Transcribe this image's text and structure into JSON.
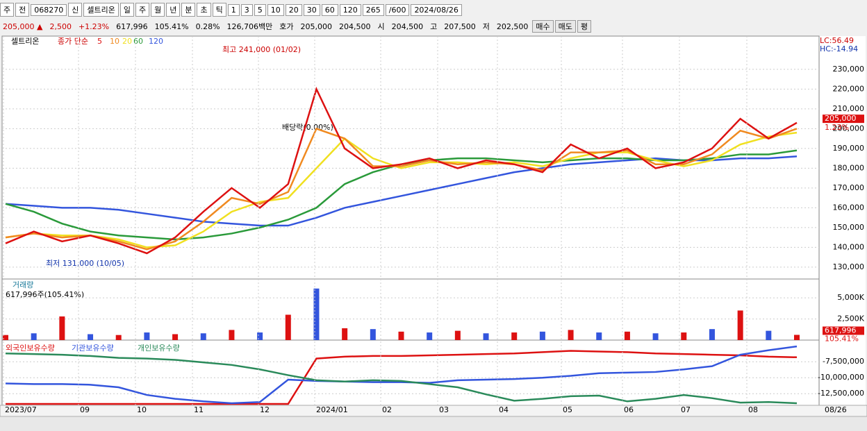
{
  "toolbar": {
    "items": [
      "주",
      "전",
      "068270",
      "신",
      "셀트리온",
      "일",
      "주",
      "월",
      "년",
      "분",
      "초",
      "틱",
      "1",
      "3",
      "5",
      "10",
      "20",
      "30",
      "60",
      "120"
    ],
    "count": "265",
    "max": "/600",
    "date": "2024/08/26"
  },
  "info_bar": {
    "items": [
      "205,000 ▲",
      "2,500",
      "+1.23%",
      "617,996",
      "105.41%",
      "0.28%",
      "126,706백만",
      "호가",
      "205,000",
      "204,500",
      "시",
      "204,500",
      "고",
      "207,500",
      "저",
      "202,500"
    ],
    "buttons": [
      "매수",
      "매도",
      "평"
    ]
  },
  "stock_name": "셀트리온",
  "legend_prefix": "종가 단순",
  "annotations": {
    "high": "최고 241,000 (01/02)",
    "low": "최저 131,000 (10/05)",
    "dividend": "배당락(0.00%)",
    "lc": "LC:56.49",
    "hc": "HC:-14.94"
  },
  "x_axis": {
    "labels": [
      "2023/07",
      "09",
      "10",
      "11",
      "12",
      "2024/01",
      "02",
      "03",
      "04",
      "05",
      "06",
      "07",
      "08"
    ],
    "end_label": "08/26"
  },
  "chart_data": [
    {
      "type": "line",
      "ylim": [
        124000,
        246800
      ],
      "yticks": [
        {
          "value": 130000,
          "label": "130,000"
        },
        {
          "value": 140000,
          "label": "140,000"
        },
        {
          "value": 150000,
          "label": "150,000"
        },
        {
          "value": 160000,
          "label": "160,000"
        },
        {
          "value": 170000,
          "label": "170,000"
        },
        {
          "value": 180000,
          "label": "180,000"
        },
        {
          "value": 190000,
          "label": "190,000"
        },
        {
          "value": 200000,
          "label": "200,000"
        },
        {
          "value": 210000,
          "label": "210,000"
        },
        {
          "value": 220000,
          "label": "220,000"
        },
        {
          "value": 230000,
          "label": "230,000"
        }
      ],
      "last_price": {
        "value": 205000,
        "label": "205,000"
      },
      "last_change": "1.23%",
      "series": [
        {
          "name": "120",
          "color": "#3355dd",
          "values": [
            162000,
            161000,
            160000,
            160000,
            159000,
            157000,
            155000,
            153000,
            152000,
            151000,
            151000,
            155000,
            160000,
            163000,
            166000,
            169000,
            172000,
            175000,
            178000,
            180000,
            182000,
            183000,
            184000,
            185000,
            184000,
            184000,
            185000,
            185000,
            186000
          ]
        },
        {
          "name": "60",
          "color": "#2a9a3a",
          "values": [
            162000,
            158000,
            152000,
            148000,
            146000,
            145000,
            144000,
            145000,
            147000,
            150000,
            154000,
            160000,
            172000,
            178000,
            182000,
            184000,
            185000,
            185000,
            184000,
            183000,
            184000,
            185000,
            185000,
            184000,
            184000,
            185000,
            187000,
            187000,
            189000
          ]
        },
        {
          "name": "20",
          "color": "#f0e020",
          "values": [
            145000,
            147000,
            146000,
            146000,
            144000,
            140000,
            141000,
            148000,
            158000,
            163000,
            165000,
            180000,
            195000,
            185000,
            180000,
            183000,
            183000,
            182000,
            183000,
            181000,
            185000,
            188000,
            188000,
            184000,
            181000,
            184000,
            192000,
            196000,
            198000
          ]
        },
        {
          "name": "10",
          "color": "#f08a20",
          "values": [
            145000,
            147000,
            145000,
            146000,
            143000,
            139000,
            143000,
            153000,
            165000,
            162000,
            168000,
            200000,
            195000,
            181000,
            181000,
            184000,
            182000,
            183000,
            182000,
            179000,
            188000,
            188000,
            189000,
            182000,
            182000,
            187000,
            199000,
            195000,
            200000
          ]
        },
        {
          "name": "5",
          "color": "#dd1111",
          "values": [
            142000,
            148000,
            143000,
            146000,
            142000,
            137000,
            145000,
            158000,
            170000,
            160000,
            172000,
            220000,
            190000,
            180000,
            182000,
            185000,
            180000,
            184000,
            182000,
            178000,
            192000,
            185000,
            190000,
            180000,
            183000,
            190000,
            205000,
            195000,
            203000
          ]
        }
      ]
    },
    {
      "type": "bar",
      "title": "거래량",
      "subtitle": "617,996주(105.41%)",
      "ylim": [
        0,
        6900000
      ],
      "yticks": [
        {
          "value": 2500000,
          "label": "2,500K"
        },
        {
          "value": 5000000,
          "label": "5,000K"
        }
      ],
      "last_value": {
        "value": 617996,
        "label": "617,996"
      },
      "last_ratio": "105.41%",
      "colors": [
        "#dd1111",
        "#3355dd"
      ],
      "values": [
        600000,
        800000,
        2800000,
        700000,
        600000,
        900000,
        700000,
        800000,
        1200000,
        900000,
        3000000,
        6100000,
        1400000,
        1300000,
        1000000,
        900000,
        1100000,
        800000,
        900000,
        1000000,
        1200000,
        900000,
        1000000,
        800000,
        900000,
        1300000,
        3500000,
        1100000,
        617996
      ]
    },
    {
      "type": "line",
      "ylim": [
        -14320000,
        -4545000
      ],
      "yticks": [
        {
          "value": -12500000,
          "label": "-12,500,000"
        },
        {
          "value": -10000000,
          "label": "-10,000,000"
        },
        {
          "value": -7500000,
          "label": "-7,500,000"
        }
      ],
      "series": [
        {
          "name": "외국인보유수량",
          "color": "#dd1111",
          "values": [
            -14100000,
            -14100000,
            -14100000,
            -14100000,
            -14100000,
            -14100000,
            -14100000,
            -14100000,
            -14100000,
            -14100000,
            -14100000,
            -7000000,
            -6700000,
            -6600000,
            -6600000,
            -6500000,
            -6400000,
            -6300000,
            -6200000,
            -6000000,
            -5800000,
            -5900000,
            -6000000,
            -6200000,
            -6300000,
            -6400000,
            -6500000,
            -6700000,
            -6800000
          ]
        },
        {
          "name": "기관보유수량",
          "color": "#3355dd",
          "values": [
            -10900000,
            -11000000,
            -11000000,
            -11100000,
            -11500000,
            -12700000,
            -13300000,
            -13700000,
            -14000000,
            -13800000,
            -10300000,
            -10500000,
            -10600000,
            -10700000,
            -10700000,
            -10800000,
            -10400000,
            -10300000,
            -10200000,
            -10000000,
            -9700000,
            -9300000,
            -9200000,
            -9100000,
            -8700000,
            -8200000,
            -6400000,
            -5700000,
            -5100000
          ]
        },
        {
          "name": "개인보유수량",
          "color": "#2a8a5a",
          "values": [
            -6200000,
            -6300000,
            -6400000,
            -6600000,
            -6900000,
            -7000000,
            -7200000,
            -7600000,
            -8000000,
            -8700000,
            -9600000,
            -10400000,
            -10600000,
            -10400000,
            -10500000,
            -11000000,
            -11500000,
            -12600000,
            -13600000,
            -13300000,
            -12900000,
            -12800000,
            -13700000,
            -13300000,
            -12700000,
            -13200000,
            -13900000,
            -13800000,
            -14000000
          ]
        }
      ]
    }
  ]
}
